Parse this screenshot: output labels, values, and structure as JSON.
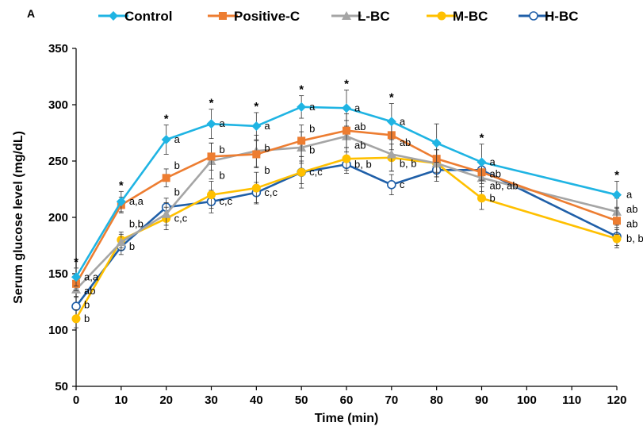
{
  "chart_data": {
    "type": "line",
    "panel_label": "A",
    "xlabel": "Time (min)",
    "ylabel": "Serum glucose level (mg/dL)",
    "x": [
      0,
      10,
      20,
      30,
      40,
      50,
      60,
      70,
      80,
      90,
      120
    ],
    "xticks": [
      "0",
      "10",
      "20",
      "30",
      "40",
      "50",
      "60",
      "70",
      "80",
      "90",
      "100",
      "110",
      "120"
    ],
    "yticks": [
      "50",
      "100",
      "150",
      "200",
      "250",
      "300",
      "350"
    ],
    "xlim": [
      0,
      120
    ],
    "ylim": [
      50,
      350
    ],
    "legend_position": "top",
    "series": [
      {
        "name": "Control",
        "color": "#1fb4e3",
        "marker": "diamond",
        "values": [
          147,
          214,
          269,
          283,
          281,
          298,
          297,
          285,
          266,
          249,
          220
        ],
        "errors": [
          8,
          9,
          13,
          13,
          12,
          10,
          16,
          16,
          17,
          16,
          12
        ]
      },
      {
        "name": "Positive-C",
        "color": "#ed7d31",
        "marker": "square",
        "values": [
          141,
          211,
          235,
          254,
          256,
          268,
          277,
          273,
          252,
          240,
          197
        ],
        "errors": [
          6,
          7,
          8,
          12,
          12,
          14,
          15,
          13,
          12,
          10,
          12
        ]
      },
      {
        "name": "L-BC",
        "color": "#a5a5a5",
        "marker": "triangle",
        "values": [
          136,
          178,
          203,
          250,
          259,
          262,
          272,
          256,
          248,
          235,
          205
        ],
        "errors": [
          6,
          7,
          10,
          16,
          14,
          14,
          14,
          15,
          12,
          12,
          12
        ]
      },
      {
        "name": "M-BC",
        "color": "#ffc000",
        "marker": "circle",
        "values": [
          110,
          180,
          199,
          220,
          226,
          240,
          252,
          253,
          248,
          217,
          181
        ],
        "errors": [
          8,
          7,
          10,
          12,
          14,
          14,
          10,
          12,
          12,
          10,
          8
        ]
      },
      {
        "name": "H-BC",
        "color": "#1f5fa8",
        "marker": "open-circle",
        "values": [
          121,
          174,
          209,
          214,
          222,
          240,
          247,
          229,
          242,
          242,
          183
        ],
        "errors": [
          8,
          7,
          8,
          10,
          9,
          10,
          8,
          9,
          10,
          9,
          8
        ]
      }
    ],
    "significance_marks": [
      {
        "x": 0,
        "label": "*"
      },
      {
        "x": 10,
        "label": "*"
      },
      {
        "x": 20,
        "label": "*"
      },
      {
        "x": 30,
        "label": "*"
      },
      {
        "x": 40,
        "label": "*"
      },
      {
        "x": 50,
        "label": "*"
      },
      {
        "x": 60,
        "label": "*"
      },
      {
        "x": 70,
        "label": "*"
      },
      {
        "x": 90,
        "label": "*"
      },
      {
        "x": 120,
        "label": "*"
      }
    ],
    "annotations": [
      {
        "x": 0,
        "lines": [
          "a,a",
          "ab",
          "b",
          "b"
        ]
      },
      {
        "x": 10,
        "lines": [
          "a,a",
          "b,b",
          "b"
        ]
      },
      {
        "x": 20,
        "lines": [
          "a",
          "b",
          "b",
          "c,c"
        ]
      },
      {
        "x": 30,
        "lines": [
          "a",
          "b",
          "b",
          "c,c"
        ]
      },
      {
        "x": 40,
        "lines": [
          "a",
          "b",
          "b",
          "c,c"
        ]
      },
      {
        "x": 50,
        "lines": [
          "a",
          "b",
          "b",
          "c,c"
        ]
      },
      {
        "x": 60,
        "lines": [
          "a",
          "ab",
          "ab",
          "b, b"
        ]
      },
      {
        "x": 70,
        "lines": [
          "a",
          "ab",
          "b, b",
          "c"
        ]
      },
      {
        "x": 90,
        "lines": [
          "a",
          "ab",
          "ab, ab",
          "b"
        ]
      },
      {
        "x": 120,
        "lines": [
          "a",
          "ab",
          "ab",
          "b, b"
        ]
      }
    ]
  }
}
